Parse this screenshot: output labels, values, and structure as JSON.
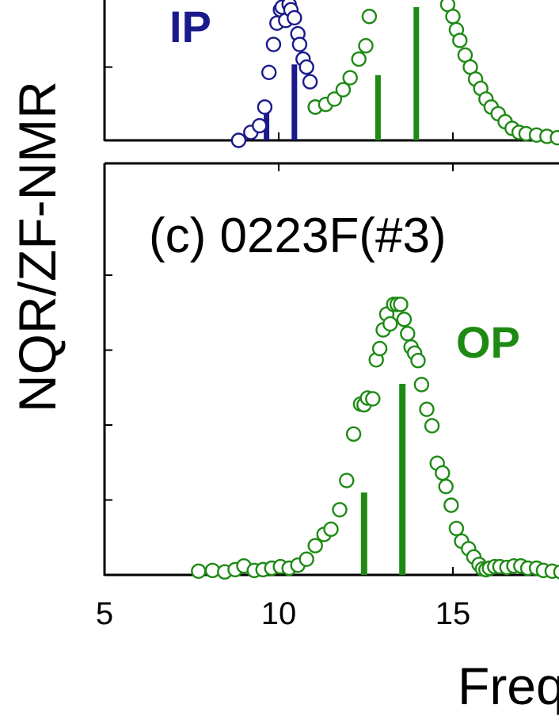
{
  "figure": {
    "ylabel": "NQR/ZF-NMR",
    "xlabel_partial": "Freq",
    "colors": {
      "ip": "#1a1a8c",
      "op": "#1e8a14",
      "axis": "#000000"
    }
  },
  "chart_data": [
    {
      "panel": "top (partially cropped)",
      "type": "scatter",
      "xlim": [
        5,
        18.2
      ],
      "y_visible_range": [
        0,
        1
      ],
      "series": [
        {
          "name": "IP",
          "color": "#1a1a8c",
          "x": [
            8.85,
            9.2,
            9.45,
            9.6,
            9.72,
            9.85,
            9.95,
            10.05,
            10.1,
            10.2,
            10.3,
            10.35,
            10.45,
            10.55,
            10.6,
            10.7,
            10.8,
            10.9,
            11.05
          ],
          "y": [
            0.0,
            0.06,
            0.11,
            0.25,
            0.51,
            0.72,
            0.88,
            0.98,
            1.0,
            0.9,
            1.02,
            0.98,
            0.92,
            0.8,
            0.72,
            0.61,
            0.55,
            0.44,
            0.25
          ]
        },
        {
          "name": "OP",
          "color": "#1e8a14",
          "x": [
            11.05,
            11.35,
            11.6,
            11.85,
            12.05,
            12.3,
            12.5,
            12.6,
            14.85,
            15.0,
            15.1,
            15.2,
            15.35,
            15.5,
            15.65,
            15.8,
            15.95,
            16.1,
            16.3,
            16.5,
            16.7,
            16.9,
            17.1,
            17.4,
            17.7,
            18.0
          ],
          "y": [
            0.25,
            0.27,
            0.31,
            0.38,
            0.47,
            0.61,
            0.71,
            0.93,
            1.02,
            0.93,
            0.83,
            0.75,
            0.64,
            0.55,
            0.46,
            0.39,
            0.31,
            0.25,
            0.2,
            0.14,
            0.09,
            0.06,
            0.05,
            0.04,
            0.03,
            0.02
          ]
        }
      ],
      "bars": [
        {
          "series": "IP",
          "x": 9.65,
          "height": 0.23
        },
        {
          "series": "IP",
          "x": 10.45,
          "height": 0.57
        },
        {
          "series": "OP",
          "x": 12.85,
          "height": 0.49
        },
        {
          "series": "OP",
          "x": 13.95,
          "height": 1.0
        }
      ],
      "annotations": [
        "IP"
      ]
    },
    {
      "panel": "c",
      "title": "(c) 0223F(#3)",
      "type": "scatter",
      "xlim": [
        5,
        18.2
      ],
      "ylim": [
        0,
        5.5
      ],
      "x_ticks": [
        5,
        10,
        15
      ],
      "series": [
        {
          "name": "OP",
          "color": "#1e8a14",
          "x": [
            7.7,
            8.1,
            8.45,
            8.75,
            9.0,
            9.3,
            9.55,
            9.8,
            10.05,
            10.3,
            10.55,
            10.8,
            11.05,
            11.3,
            11.5,
            11.75,
            11.95,
            12.15,
            12.35,
            12.45,
            12.55,
            12.7,
            12.8,
            12.9,
            13.0,
            13.1,
            13.2,
            13.3,
            13.4,
            13.5,
            13.6,
            13.7,
            13.8,
            13.9,
            14.0,
            14.1,
            14.25,
            14.4,
            14.55,
            14.7,
            14.8,
            14.95,
            15.1,
            15.25,
            15.45,
            15.6,
            15.75,
            15.85,
            15.95,
            16.05,
            16.2,
            16.35,
            16.55,
            16.75,
            16.95,
            17.15,
            17.4,
            17.6,
            17.85,
            18.1
          ],
          "y": [
            0.05,
            0.06,
            0.04,
            0.07,
            0.12,
            0.06,
            0.07,
            0.09,
            0.11,
            0.09,
            0.13,
            0.21,
            0.39,
            0.54,
            0.61,
            0.87,
            1.26,
            1.88,
            2.28,
            2.27,
            2.36,
            2.35,
            2.87,
            3.02,
            3.27,
            3.48,
            3.35,
            3.61,
            3.61,
            3.61,
            3.41,
            3.22,
            3.04,
            2.96,
            2.86,
            2.54,
            2.21,
            1.99,
            1.49,
            1.36,
            1.18,
            0.93,
            0.62,
            0.45,
            0.35,
            0.24,
            0.14,
            0.08,
            0.07,
            0.09,
            0.11,
            0.11,
            0.1,
            0.12,
            0.12,
            0.09,
            0.09,
            0.06,
            0.05,
            0.04
          ]
        }
      ],
      "bars": [
        {
          "series": "OP",
          "x": 12.45,
          "height": 1.1
        },
        {
          "series": "OP",
          "x": 13.55,
          "height": 2.55
        }
      ],
      "annotations": [
        "OP"
      ]
    }
  ]
}
